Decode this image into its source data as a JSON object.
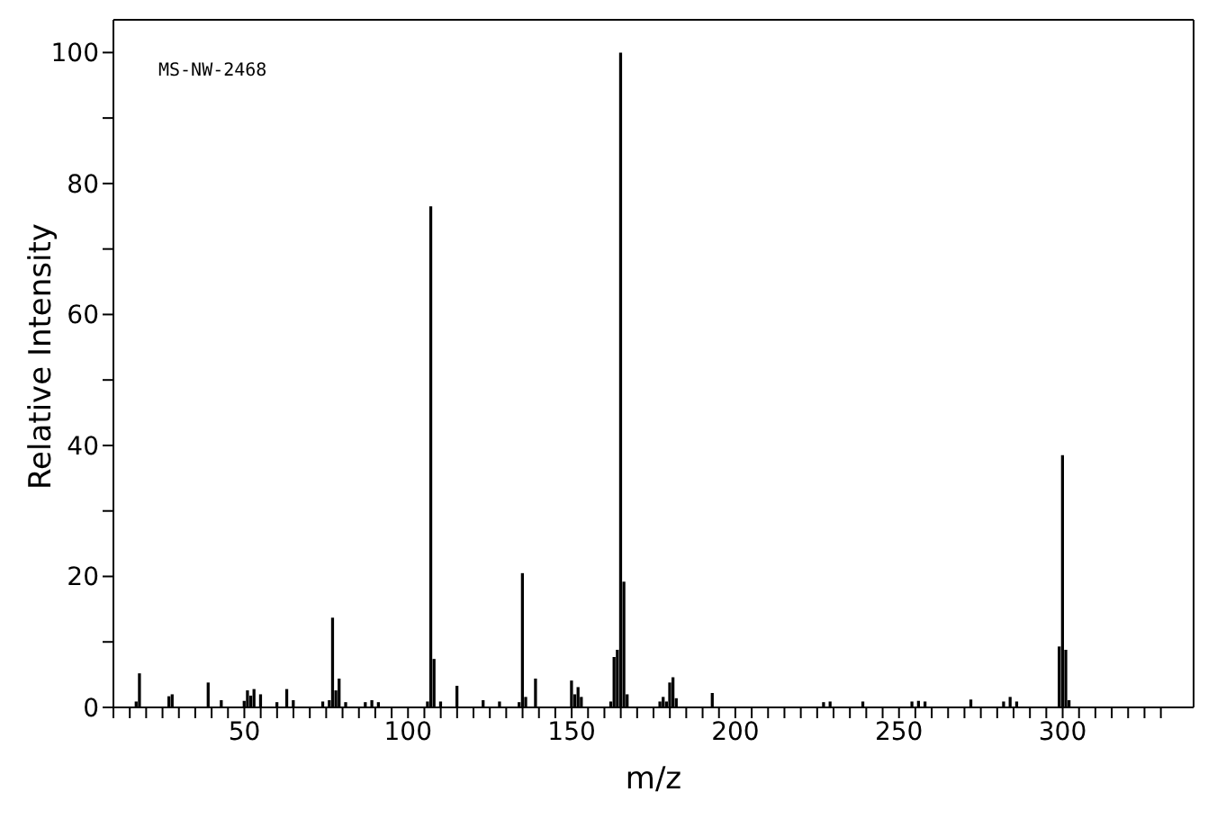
{
  "chart_data": {
    "type": "bar",
    "xlabel": "m/z",
    "ylabel": "Relative Intensity",
    "annotations": [
      "MS-NW-2468"
    ],
    "x": [
      17,
      18,
      27,
      28,
      39,
      43,
      50,
      51,
      52,
      53,
      55,
      60,
      63,
      65,
      74,
      76,
      77,
      78,
      79,
      81,
      87,
      89,
      91,
      106,
      107,
      108,
      110,
      115,
      123,
      128,
      134,
      135,
      136,
      139,
      150,
      151,
      152,
      153,
      162,
      163,
      164,
      165,
      166,
      167,
      177,
      178,
      179,
      180,
      181,
      182,
      193,
      227,
      229,
      239,
      254,
      256,
      258,
      272,
      282,
      284,
      286,
      299,
      300,
      301,
      302
    ],
    "series": [
      {
        "color": "#000000",
        "values": [
          0.9,
          5.2,
          1.7,
          2.0,
          3.8,
          1.1,
          1.0,
          2.6,
          1.8,
          2.8,
          2.0,
          0.8,
          2.8,
          1.1,
          0.9,
          1.1,
          13.7,
          2.6,
          4.4,
          0.8,
          0.8,
          1.1,
          0.8,
          0.9,
          76.5,
          7.4,
          0.9,
          3.3,
          1.1,
          0.9,
          0.8,
          20.5,
          1.6,
          4.4,
          4.1,
          2.0,
          3.1,
          1.6,
          0.9,
          7.7,
          8.8,
          100,
          19.2,
          2.0,
          0.9,
          1.6,
          0.9,
          3.8,
          4.6,
          1.4,
          2.2,
          0.8,
          0.9,
          0.9,
          0.9,
          1.0,
          0.9,
          1.2,
          0.9,
          1.6,
          0.9,
          9.3,
          38.5,
          8.8,
          1.1
        ]
      }
    ],
    "xlim": [
      10,
      340
    ],
    "xticks": [
      {
        "value": 10,
        "label": null
      },
      {
        "value": 15,
        "label": null
      },
      {
        "value": 20,
        "label": null
      },
      {
        "value": 25,
        "label": null
      },
      {
        "value": 30,
        "label": null
      },
      {
        "value": 35,
        "label": null
      },
      {
        "value": 40,
        "label": null
      },
      {
        "value": 45,
        "label": null
      },
      50,
      {
        "value": 55,
        "label": null
      },
      {
        "value": 60,
        "label": null
      },
      {
        "value": 65,
        "label": null
      },
      {
        "value": 70,
        "label": null
      },
      {
        "value": 75,
        "label": null
      },
      {
        "value": 80,
        "label": null
      },
      {
        "value": 85,
        "label": null
      },
      {
        "value": 90,
        "label": null
      },
      {
        "value": 95,
        "label": null
      },
      100,
      {
        "value": 105,
        "label": null
      },
      {
        "value": 110,
        "label": null
      },
      {
        "value": 115,
        "label": null
      },
      {
        "value": 120,
        "label": null
      },
      {
        "value": 125,
        "label": null
      },
      {
        "value": 130,
        "label": null
      },
      {
        "value": 135,
        "label": null
      },
      {
        "value": 140,
        "label": null
      },
      {
        "value": 145,
        "label": null
      },
      150,
      {
        "value": 155,
        "label": null
      },
      {
        "value": 160,
        "label": null
      },
      {
        "value": 165,
        "label": null
      },
      {
        "value": 170,
        "label": null
      },
      {
        "value": 175,
        "label": null
      },
      {
        "value": 180,
        "label": null
      },
      {
        "value": 185,
        "label": null
      },
      {
        "value": 190,
        "label": null
      },
      {
        "value": 195,
        "label": null
      },
      200,
      {
        "value": 205,
        "label": null
      },
      {
        "value": 210,
        "label": null
      },
      {
        "value": 215,
        "label": null
      },
      {
        "value": 220,
        "label": null
      },
      {
        "value": 225,
        "label": null
      },
      {
        "value": 230,
        "label": null
      },
      {
        "value": 235,
        "label": null
      },
      {
        "value": 240,
        "label": null
      },
      {
        "value": 245,
        "label": null
      },
      250,
      {
        "value": 255,
        "label": null
      },
      {
        "value": 260,
        "label": null
      },
      {
        "value": 265,
        "label": null
      },
      {
        "value": 270,
        "label": null
      },
      {
        "value": 275,
        "label": null
      },
      {
        "value": 280,
        "label": null
      },
      {
        "value": 285,
        "label": null
      },
      {
        "value": 290,
        "label": null
      },
      {
        "value": 295,
        "label": null
      },
      300,
      {
        "value": 305,
        "label": null
      },
      {
        "value": 310,
        "label": null
      },
      {
        "value": 315,
        "label": null
      },
      {
        "value": 320,
        "label": null
      },
      {
        "value": 325,
        "label": null
      },
      {
        "value": 330,
        "label": null
      }
    ],
    "ylim": [
      0,
      105
    ],
    "yticks": [
      0,
      {
        "value": 10,
        "label": null
      },
      20,
      {
        "value": 30,
        "label": null
      },
      40,
      {
        "value": 50,
        "label": null
      },
      60,
      {
        "value": 70,
        "label": null
      },
      80,
      {
        "value": 90,
        "label": null
      },
      100
    ],
    "grid": false,
    "legend": false
  }
}
